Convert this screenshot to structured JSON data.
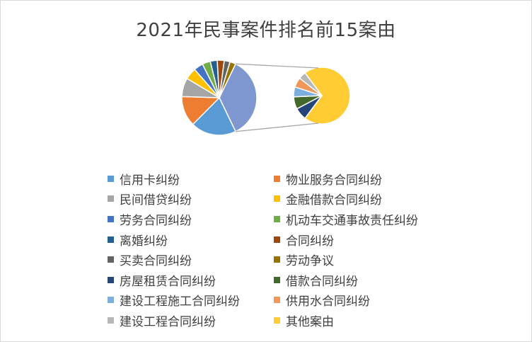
{
  "chart_data": {
    "type": "pie-of-pie",
    "title": "2021年民事案件排名前15案由",
    "slices": [
      {
        "name": "信用卡纠纷",
        "value": 19.5,
        "color": "#5B9BD5"
      },
      {
        "name": "物业服务合同纠纷",
        "value": 13.0,
        "color": "#ED7D31"
      },
      {
        "name": "民间借贷纠纷",
        "value": 8.0,
        "color": "#A5A5A5"
      },
      {
        "name": "金融借款合同纠纷",
        "value": 5.0,
        "color": "#FFC000"
      },
      {
        "name": "劳务合同纠纷",
        "value": 4.0,
        "color": "#4472C4"
      },
      {
        "name": "机动车交通事故责任纠纷",
        "value": 3.5,
        "color": "#70AD47"
      },
      {
        "name": "离婚纠纷",
        "value": 3.0,
        "color": "#255E91"
      },
      {
        "name": "合同纠纷",
        "value": 3.0,
        "color": "#9E480E"
      },
      {
        "name": "买卖合同纠纷",
        "value": 2.5,
        "color": "#636363"
      },
      {
        "name": "劳动争议",
        "value": 2.5,
        "color": "#997300"
      },
      {
        "name": "房屋租赁合同纠纷",
        "value": 2.5,
        "color": "#264478"
      },
      {
        "name": "借款合同纠纷",
        "value": 2.5,
        "color": "#43682B"
      },
      {
        "name": "建设工程施工合同纠纷",
        "value": 2.0,
        "color": "#7CAFDD"
      },
      {
        "name": "供用水合同纠纷",
        "value": 2.0,
        "color": "#F1975A"
      },
      {
        "name": "建设工程合同纠纷",
        "value": 1.5,
        "color": "#B7B7B7"
      },
      {
        "name": "其他案由",
        "value": 25.0,
        "color": "#FFCD33"
      }
    ],
    "secondary_pie_count": 6,
    "other_color": "#7F97CF",
    "legend_position": "bottom"
  }
}
